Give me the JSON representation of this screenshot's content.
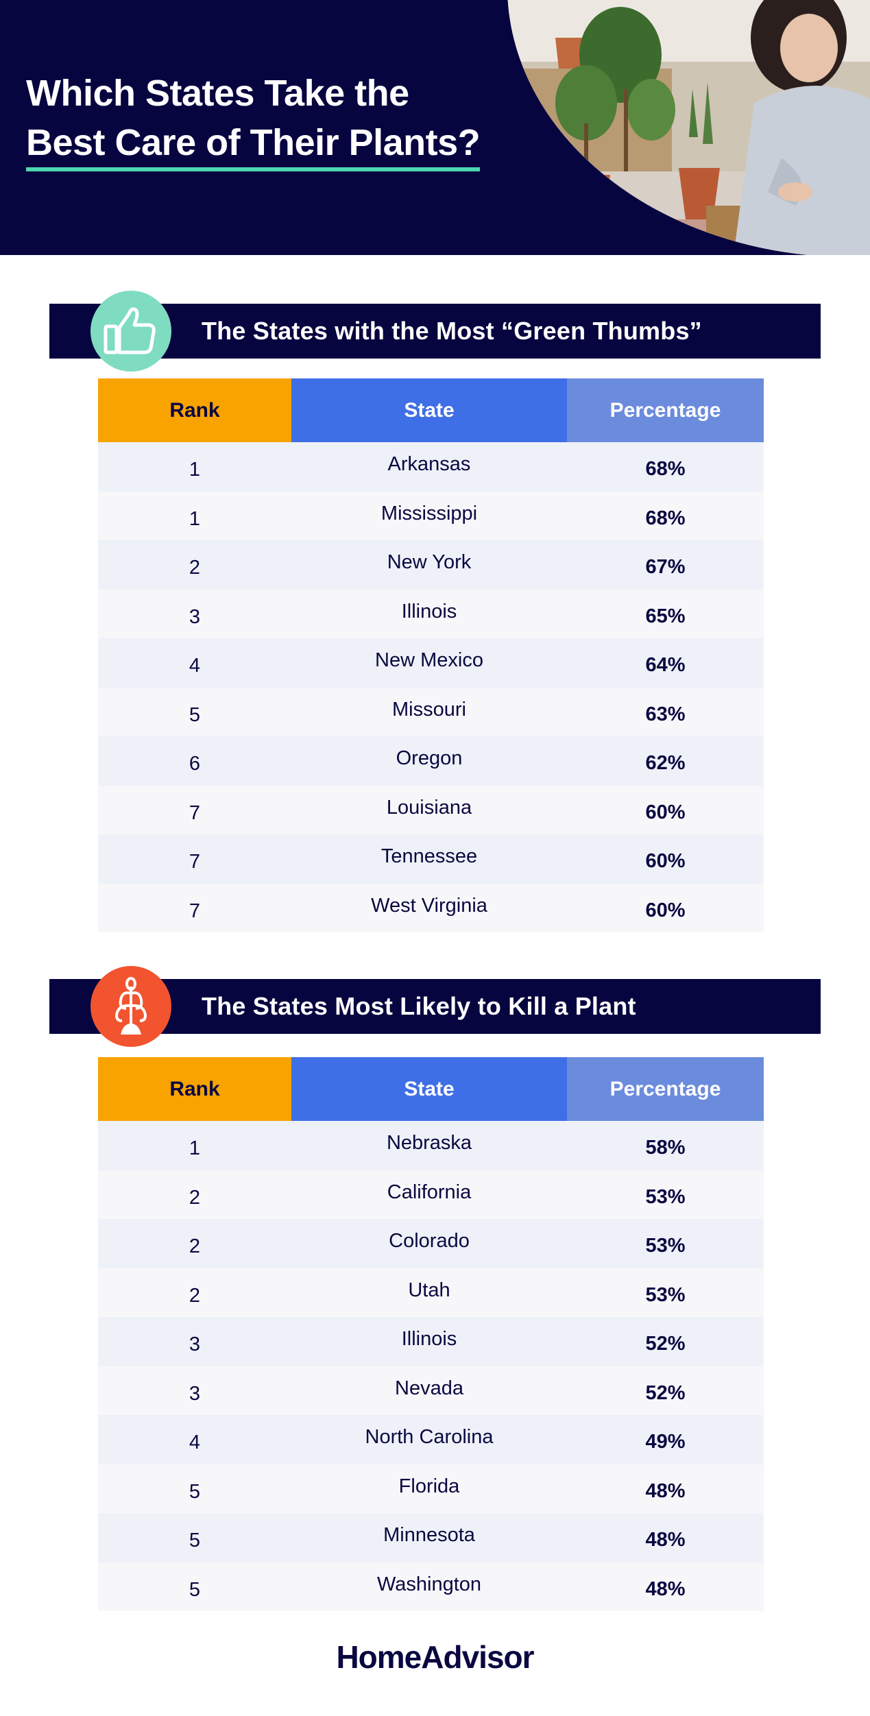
{
  "header": {
    "title_line1": "Which States Take the",
    "title_line2": "Best Care of Their Plants?"
  },
  "colors": {
    "navy": "#070540",
    "accent_green": "#4fd6b0",
    "rank_header": "#f9a300",
    "state_header": "#3f6fe6",
    "pct_header": "#6b8bdd",
    "badge_green": "#7fdcc0",
    "badge_red": "#f1542f"
  },
  "chart_data": [
    {
      "type": "table",
      "title": "The States with the Most “Green Thumbs”",
      "columns": [
        "Rank",
        "State",
        "Percentage"
      ],
      "rows": [
        {
          "rank": "1",
          "state": "Arkansas",
          "pct": "68%"
        },
        {
          "rank": "1",
          "state": "Mississippi",
          "pct": "68%"
        },
        {
          "rank": "2",
          "state": "New York",
          "pct": "67%"
        },
        {
          "rank": "3",
          "state": "Illinois",
          "pct": "65%"
        },
        {
          "rank": "4",
          "state": "New Mexico",
          "pct": "64%"
        },
        {
          "rank": "5",
          "state": "Missouri",
          "pct": "63%"
        },
        {
          "rank": "6",
          "state": "Oregon",
          "pct": "62%"
        },
        {
          "rank": "7",
          "state": "Louisiana",
          "pct": "60%"
        },
        {
          "rank": "7",
          "state": "Tennessee",
          "pct": "60%"
        },
        {
          "rank": "7",
          "state": "West Virginia",
          "pct": "60%"
        }
      ]
    },
    {
      "type": "table",
      "title": "The States Most Likely to Kill a Plant",
      "columns": [
        "Rank",
        "State",
        "Percentage"
      ],
      "rows": [
        {
          "rank": "1",
          "state": "Nebraska",
          "pct": "58%"
        },
        {
          "rank": "2",
          "state": "California",
          "pct": "53%"
        },
        {
          "rank": "2",
          "state": "Colorado",
          "pct": "53%"
        },
        {
          "rank": "2",
          "state": "Utah",
          "pct": "53%"
        },
        {
          "rank": "3",
          "state": "Illinois",
          "pct": "52%"
        },
        {
          "rank": "3",
          "state": "Nevada",
          "pct": "52%"
        },
        {
          "rank": "4",
          "state": "North Carolina",
          "pct": "49%"
        },
        {
          "rank": "5",
          "state": "Florida",
          "pct": "48%"
        },
        {
          "rank": "5",
          "state": "Minnesota",
          "pct": "48%"
        },
        {
          "rank": "5",
          "state": "Washington",
          "pct": "48%"
        }
      ]
    }
  ],
  "icons": {
    "section1": "thumbs-up-icon",
    "section2": "wilted-plant-icon"
  },
  "footer": {
    "logo": "HomeAdvisor"
  }
}
